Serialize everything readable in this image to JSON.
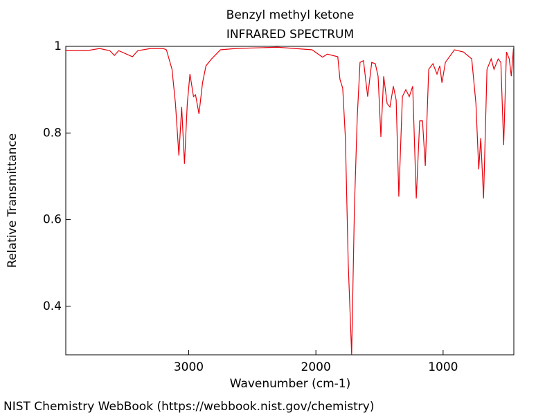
{
  "chart_data": {
    "type": "line",
    "title": "Benzyl methyl ketone",
    "subtitle": "INFRARED SPECTRUM",
    "x_label": "Wavenumber (cm-1)",
    "y_label": "Relative Transmittance",
    "source": "NIST Chemistry WebBook (https://webbook.nist.gov/chemistry)",
    "xlim": [
      3966,
      444
    ],
    "ylim": [
      0.288,
      1
    ],
    "xticks": [
      3000,
      2000,
      1000
    ],
    "yticks": [
      0.4,
      0.6,
      0.8,
      1
    ],
    "x": [
      3966,
      3900,
      3800,
      3700,
      3620,
      3584,
      3550,
      3442,
      3400,
      3300,
      3200,
      3175,
      3131,
      3104,
      3077,
      3055,
      3033,
      3011,
      2990,
      2962,
      2946,
      2919,
      2891,
      2864,
      2820,
      2750,
      2630,
      2302,
      2030,
      1948,
      1910,
      1828,
      1811,
      1789,
      1768,
      1746,
      1719,
      1697,
      1675,
      1653,
      1626,
      1593,
      1561,
      1533,
      1511,
      1489,
      1467,
      1440,
      1418,
      1391,
      1369,
      1348,
      1320,
      1293,
      1266,
      1239,
      1211,
      1184,
      1162,
      1140,
      1113,
      1080,
      1048,
      1026,
      1009,
      982,
      911,
      840,
      775,
      742,
      720,
      704,
      682,
      655,
      622,
      600,
      567,
      546,
      524,
      502,
      480,
      464,
      447,
      444
    ],
    "series": [
      {
        "color": "#e8000b",
        "values": [
          0.99,
          0.99,
          0.99,
          0.995,
          0.99,
          0.979,
          0.99,
          0.976,
          0.99,
          0.995,
          0.995,
          0.992,
          0.947,
          0.868,
          0.748,
          0.86,
          0.729,
          0.868,
          0.936,
          0.884,
          0.888,
          0.844,
          0.916,
          0.955,
          0.971,
          0.992,
          0.995,
          0.998,
          0.992,
          0.975,
          0.982,
          0.976,
          0.924,
          0.903,
          0.788,
          0.501,
          0.289,
          0.629,
          0.836,
          0.963,
          0.967,
          0.884,
          0.963,
          0.96,
          0.931,
          0.791,
          0.931,
          0.868,
          0.86,
          0.908,
          0.876,
          0.653,
          0.884,
          0.9,
          0.884,
          0.908,
          0.649,
          0.828,
          0.828,
          0.724,
          0.947,
          0.96,
          0.936,
          0.955,
          0.916,
          0.963,
          0.992,
          0.987,
          0.971,
          0.868,
          0.716,
          0.788,
          0.649,
          0.947,
          0.971,
          0.947,
          0.971,
          0.963,
          0.772,
          0.987,
          0.971,
          0.931,
          0.995,
          0.924
        ]
      }
    ]
  }
}
